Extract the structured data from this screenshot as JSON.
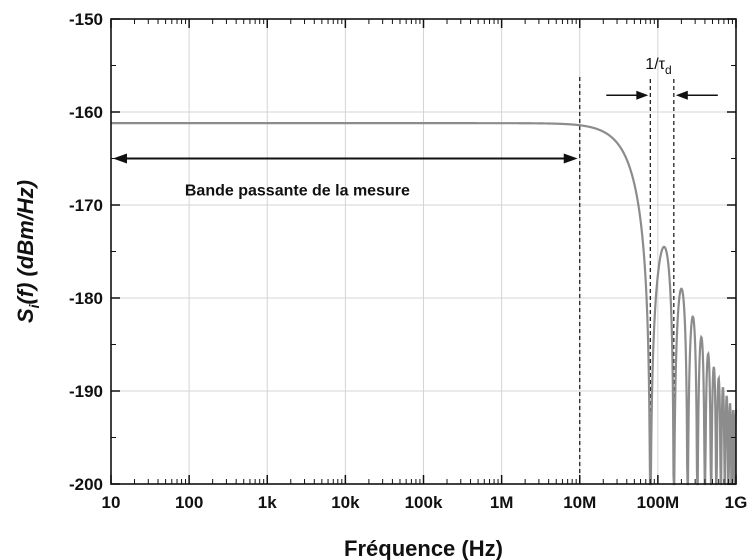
{
  "chart_data": {
    "type": "line",
    "xlabel": "Fréquence (Hz)",
    "ylabel_main": "S",
    "ylabel_sub": "i",
    "ylabel_rest": "(f) (dBm/Hz)",
    "x_scale": "log",
    "xlim": [
      10,
      1000000000
    ],
    "ylim": [
      -200,
      -150
    ],
    "grid": true,
    "x_ticks": [
      10,
      100,
      1000,
      10000,
      100000,
      1000000,
      10000000,
      100000000,
      1000000000
    ],
    "x_tick_labels": [
      "10",
      "100",
      "1k",
      "10k",
      "100k",
      "1M",
      "10M",
      "100M",
      "1G"
    ],
    "y_ticks": [
      -200,
      -190,
      -180,
      -170,
      -160,
      -150
    ],
    "y_tick_labels": [
      "-200",
      "-190",
      "-180",
      "-170",
      "-160",
      "-150"
    ],
    "series": [
      {
        "color": "#8c8c8c",
        "flat_level_dbm_hz": -161.2,
        "notch_spacing_hz": 80000000,
        "lobes": [
          {
            "f_hz": 110000000,
            "peak_dbm_hz": -174.5
          },
          {
            "f_hz": 195000000,
            "peak_dbm_hz": -179.0
          },
          {
            "f_hz": 275000000,
            "peak_dbm_hz": -182.0
          },
          {
            "f_hz": 355000000,
            "peak_dbm_hz": -184.2
          },
          {
            "f_hz": 435000000,
            "peak_dbm_hz": -186.0
          },
          {
            "f_hz": 515000000,
            "peak_dbm_hz": -187.4
          },
          {
            "f_hz": 595000000,
            "peak_dbm_hz": -188.6
          },
          {
            "f_hz": 675000000,
            "peak_dbm_hz": -189.6
          },
          {
            "f_hz": 755000000,
            "peak_dbm_hz": -190.5
          },
          {
            "f_hz": 835000000,
            "peak_dbm_hz": -191.3
          },
          {
            "f_hz": 915000000,
            "peak_dbm_hz": -192.0
          }
        ]
      }
    ],
    "vlines_hz": [
      10000000,
      80000000,
      160000000
    ],
    "annotations": {
      "bandwidth_label": "Bande passante de la mesure",
      "bandwidth_arrow_hz": [
        10,
        10000000
      ],
      "bandwidth_arrow_y": -165,
      "tau_label_main": "1/τ",
      "tau_label_sub": "d",
      "tau_arrows_y": -158.2
    }
  }
}
